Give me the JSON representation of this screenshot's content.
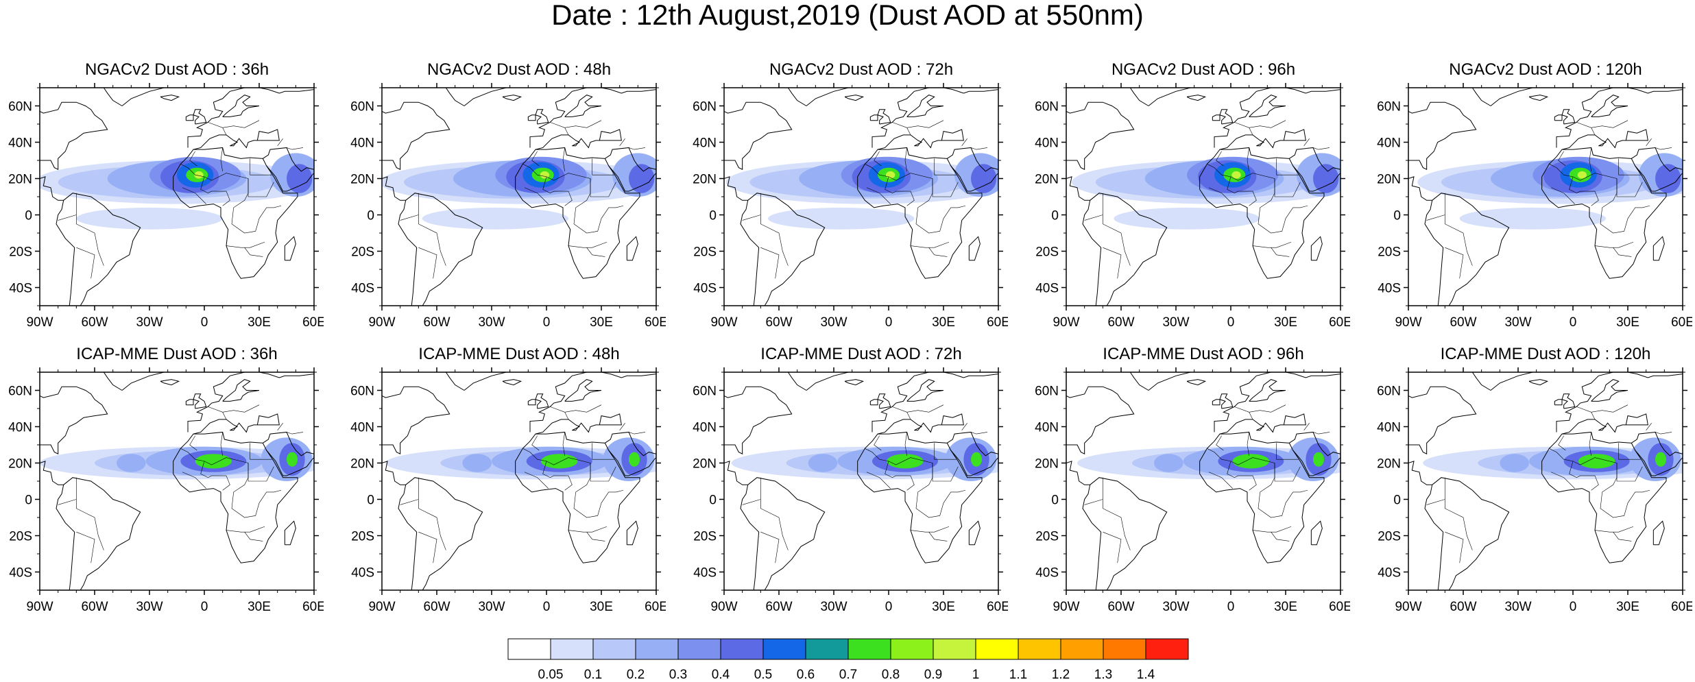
{
  "title": "Date : 12th August,2019 (Dust AOD at 550nm)",
  "row_models": [
    "NGACv2",
    "ICAP-MME"
  ],
  "panel_titles": [
    "NGACv2 Dust AOD : 36h",
    "NGACv2 Dust AOD : 48h",
    "NGACv2 Dust AOD : 72h",
    "NGACv2 Dust AOD : 96h",
    "NGACv2 Dust AOD : 120h",
    "ICAP-MME Dust AOD : 36h",
    "ICAP-MME Dust AOD : 48h",
    "ICAP-MME Dust AOD : 72h",
    "ICAP-MME Dust AOD : 96h",
    "ICAP-MME Dust AOD : 120h"
  ],
  "lon_ticks": [
    "90W",
    "60W",
    "30W",
    "0",
    "30E",
    "60E"
  ],
  "lat_ticks": [
    "60N",
    "40N",
    "20N",
    "0",
    "20S",
    "40S"
  ],
  "colorbar": {
    "labels": [
      "0.05",
      "0.1",
      "0.2",
      "0.3",
      "0.4",
      "0.5",
      "0.6",
      "0.7",
      "0.8",
      "0.9",
      "1",
      "1.1",
      "1.2",
      "1.3",
      "1.4"
    ],
    "colors": [
      "#ffffff",
      "#d6e0fa",
      "#b8c8f8",
      "#97b0f5",
      "#7c90f0",
      "#5d6ae6",
      "#1468e8",
      "#129a9a",
      "#3ce01e",
      "#8cf01a",
      "#c6f43c",
      "#ffff00",
      "#ffc400",
      "#ffa000",
      "#ff7800",
      "#ff2010"
    ]
  }
}
